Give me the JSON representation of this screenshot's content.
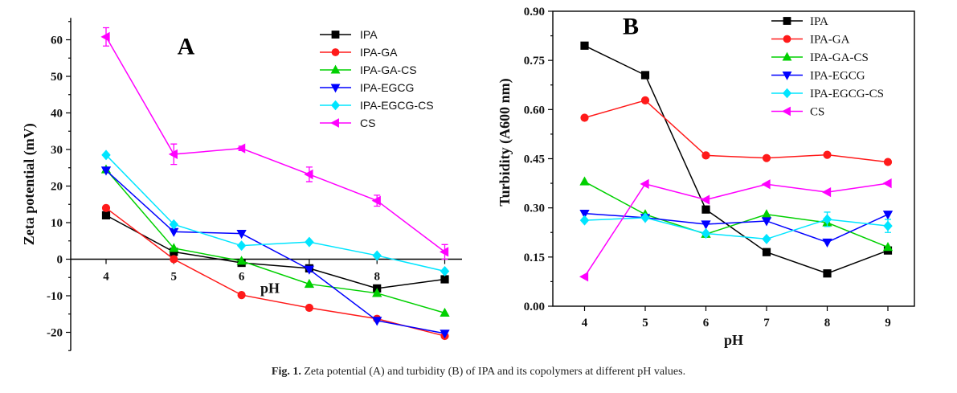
{
  "caption": {
    "label": "Fig. 1.",
    "text": "Zeta potential (A) and turbidity (B) of IPA and its copolymers at different pH values."
  },
  "colors": {
    "IPA": "#000000",
    "IPA-GA": "#ff1a1a",
    "IPA-GA-CS": "#00d000",
    "IPA-EGCG": "#0000ff",
    "IPA-EGCG-CS": "#00e5ff",
    "CS": "#ff00ff"
  },
  "chart_data": [
    {
      "type": "line",
      "panel": "A",
      "title": "A",
      "xlabel": "pH",
      "ylabel": "Zeta potential (mV)",
      "x": [
        4,
        5,
        6,
        7,
        8,
        9
      ],
      "x_tick_labels": [
        "4",
        "5",
        "6",
        "8"
      ],
      "y_tick_labels": [
        "-20",
        "-10",
        "0",
        "10",
        "20",
        "30",
        "40",
        "50",
        "60"
      ],
      "ylim": [
        -25,
        66
      ],
      "legend_position": "top-right",
      "series": [
        {
          "name": "IPA",
          "marker": "square",
          "values": [
            12,
            2,
            -1,
            -2.5,
            -8,
            -5.5
          ]
        },
        {
          "name": "IPA-GA",
          "marker": "circle",
          "values": [
            14,
            0,
            -9.8,
            -13.3,
            -16.3,
            -21
          ]
        },
        {
          "name": "IPA-GA-CS",
          "marker": "triangle-up",
          "values": [
            24.5,
            3,
            -0.5,
            -6.8,
            -9.3,
            -14.7
          ]
        },
        {
          "name": "IPA-EGCG",
          "marker": "triangle-down",
          "values": [
            24.3,
            7.5,
            7,
            -2.8,
            -16.8,
            -20.3
          ]
        },
        {
          "name": "IPA-EGCG-CS",
          "marker": "diamond",
          "values": [
            28.5,
            9.5,
            3.7,
            4.7,
            1,
            -3.3
          ]
        },
        {
          "name": "CS",
          "marker": "triangle-left",
          "values": [
            60.8,
            28.7,
            30.3,
            23.2,
            16,
            2
          ],
          "errors": [
            2.5,
            2.8,
            0.6,
            2,
            1.5,
            2
          ]
        }
      ]
    },
    {
      "type": "line",
      "panel": "B",
      "title": "B",
      "xlabel": "pH",
      "ylabel": "Turbidity (A600 nm)",
      "x": [
        4,
        5,
        6,
        7,
        8,
        9
      ],
      "x_tick_labels": [
        "4",
        "5",
        "6",
        "7",
        "8",
        "9"
      ],
      "y_tick_labels": [
        "0.00",
        "0.15",
        "0.30",
        "0.45",
        "0.60",
        "0.75",
        "0.90"
      ],
      "ylim": [
        0,
        0.9
      ],
      "legend_position": "top-right",
      "series": [
        {
          "name": "IPA",
          "marker": "square",
          "values": [
            0.795,
            0.705,
            0.295,
            0.165,
            0.1,
            0.17
          ]
        },
        {
          "name": "IPA-GA",
          "marker": "circle",
          "values": [
            0.575,
            0.628,
            0.46,
            0.452,
            0.462,
            0.44
          ]
        },
        {
          "name": "IPA-GA-CS",
          "marker": "triangle-up",
          "values": [
            0.38,
            0.28,
            0.22,
            0.28,
            0.255,
            0.18
          ]
        },
        {
          "name": "IPA-EGCG",
          "marker": "triangle-down",
          "values": [
            0.283,
            0.27,
            0.25,
            0.26,
            0.195,
            0.28
          ]
        },
        {
          "name": "IPA-EGCG-CS",
          "marker": "diamond",
          "values": [
            0.262,
            0.27,
            0.222,
            0.205,
            0.265,
            0.245
          ],
          "errors": [
            0,
            0,
            0,
            0,
            0.022,
            0.02
          ]
        },
        {
          "name": "CS",
          "marker": "triangle-left",
          "values": [
            0.09,
            0.373,
            0.325,
            0.372,
            0.348,
            0.375
          ]
        }
      ]
    }
  ]
}
